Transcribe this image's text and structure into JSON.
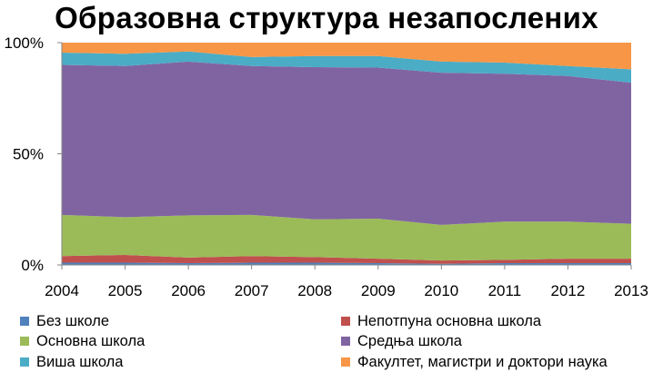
{
  "chart_data": {
    "type": "area",
    "stacked": true,
    "normalized": true,
    "title": "Образовна структура незапослених",
    "x": [
      "2004",
      "2005",
      "2006",
      "2007",
      "2008",
      "2009",
      "2010",
      "2011",
      "2012",
      "2013"
    ],
    "ylim": [
      0,
      100
    ],
    "y_ticks": [
      "0%",
      "50%",
      "100%"
    ],
    "grid": false,
    "legend_position": "bottom",
    "series": [
      {
        "name": "Без школе",
        "color": "#4F81BD",
        "values": [
          1.0,
          1.0,
          0.8,
          1.0,
          1.0,
          0.8,
          0.5,
          0.8,
          0.8,
          0.8
        ]
      },
      {
        "name": "Непотпуна основна школа",
        "color": "#C0504D",
        "values": [
          3.0,
          3.5,
          2.5,
          3.0,
          2.5,
          2.0,
          1.5,
          1.5,
          2.0,
          2.0
        ]
      },
      {
        "name": "Основна школа",
        "color": "#9BBB59",
        "values": [
          18.5,
          17.0,
          19.0,
          18.5,
          17.0,
          18.0,
          16.0,
          17.2,
          16.7,
          15.7
        ]
      },
      {
        "name": "Средња школа",
        "color": "#8064A2",
        "values": [
          67.5,
          68.0,
          69.2,
          67.0,
          68.5,
          68.0,
          68.5,
          66.5,
          65.5,
          63.5
        ]
      },
      {
        "name": "Виша школа",
        "color": "#4BACC6",
        "values": [
          5.5,
          5.5,
          4.5,
          4.0,
          5.0,
          5.2,
          5.0,
          5.0,
          4.5,
          6.0
        ]
      },
      {
        "name": "Факултет, магистри и доктори наука",
        "color": "#F79646",
        "values": [
          4.5,
          5.0,
          4.0,
          6.5,
          6.0,
          6.0,
          8.5,
          9.0,
          10.5,
          12.0
        ]
      }
    ]
  }
}
